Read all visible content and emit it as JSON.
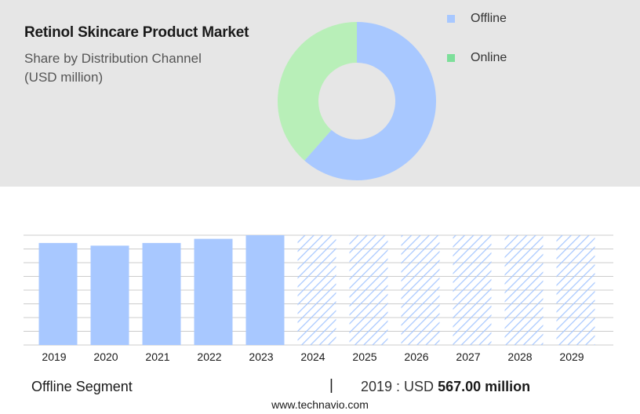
{
  "header": {
    "title": "Retinol Skincare Product Market",
    "subtitle": "Share by Distribution Channel",
    "unit": "(USD million)"
  },
  "colors": {
    "offline": "#a8c8ff",
    "online": "#b8efb8",
    "online_legend": "#7ddf9a",
    "forecast_hatch": "#a8c8ff",
    "grid": "#cccccc"
  },
  "chart_data": [
    {
      "type": "pie",
      "style": "donut",
      "legend_position": "right",
      "slices": [
        {
          "name": "Offline",
          "share": 0.615
        },
        {
          "name": "Online",
          "share": 0.385
        }
      ]
    },
    {
      "type": "bar",
      "categories": [
        "2019",
        "2020",
        "2021",
        "2022",
        "2023",
        "2024",
        "2025",
        "2026",
        "2027",
        "2028",
        "2029"
      ],
      "series": [
        {
          "name": "Offline",
          "values": [
            567,
            552,
            567,
            590,
            610,
            610,
            610,
            610,
            610,
            610,
            610
          ]
        }
      ],
      "forecast_from_index": 5,
      "ylim": [
        0,
        610
      ],
      "grid": true
    }
  ],
  "footer": {
    "segment": "Offline Segment",
    "divider": "|",
    "year_label": "2019 : USD",
    "value": "567.00 million",
    "source": "www.technavio.com"
  }
}
